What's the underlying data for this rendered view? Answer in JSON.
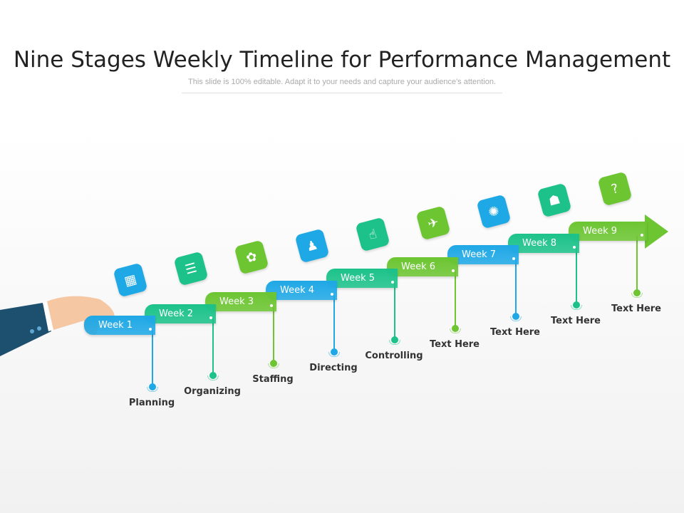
{
  "title": "Nine Stages Weekly Timeline for Performance Management",
  "subtitle": "This slide is 100% editable. Adapt it to your needs and capture your audience's attention.",
  "colors": {
    "blue": "#1fa8e6",
    "teal": "#1cc28a",
    "green": "#6cc531"
  },
  "stages": [
    {
      "week": "Week 1",
      "label": "Planning",
      "icon": "document-network-icon",
      "color": "blue",
      "glyph": "▦"
    },
    {
      "week": "Week 2",
      "label": "Organizing",
      "icon": "checklist-icon",
      "color": "teal",
      "glyph": "☰"
    },
    {
      "week": "Week 3",
      "label": "Staffing",
      "icon": "team-circle-icon",
      "color": "green",
      "glyph": "✿"
    },
    {
      "week": "Week 4",
      "label": "Directing",
      "icon": "group-people-icon",
      "color": "blue",
      "glyph": "♟"
    },
    {
      "week": "Week 5",
      "label": "Controlling",
      "icon": "touch-hand-icon",
      "color": "teal",
      "glyph": "☝"
    },
    {
      "week": "Week 6",
      "label": "Text Here",
      "icon": "airplane-icon",
      "color": "green",
      "glyph": "✈"
    },
    {
      "week": "Week 7",
      "label": "Text Here",
      "icon": "lightbulb-icon",
      "color": "blue",
      "glyph": "✺"
    },
    {
      "week": "Week 8",
      "label": "Text Here",
      "icon": "hierarchy-icon",
      "color": "teal",
      "glyph": "☗"
    },
    {
      "week": "Week 9",
      "label": "Text Here",
      "icon": "question-chat-icon",
      "color": "green",
      "glyph": "?"
    }
  ]
}
